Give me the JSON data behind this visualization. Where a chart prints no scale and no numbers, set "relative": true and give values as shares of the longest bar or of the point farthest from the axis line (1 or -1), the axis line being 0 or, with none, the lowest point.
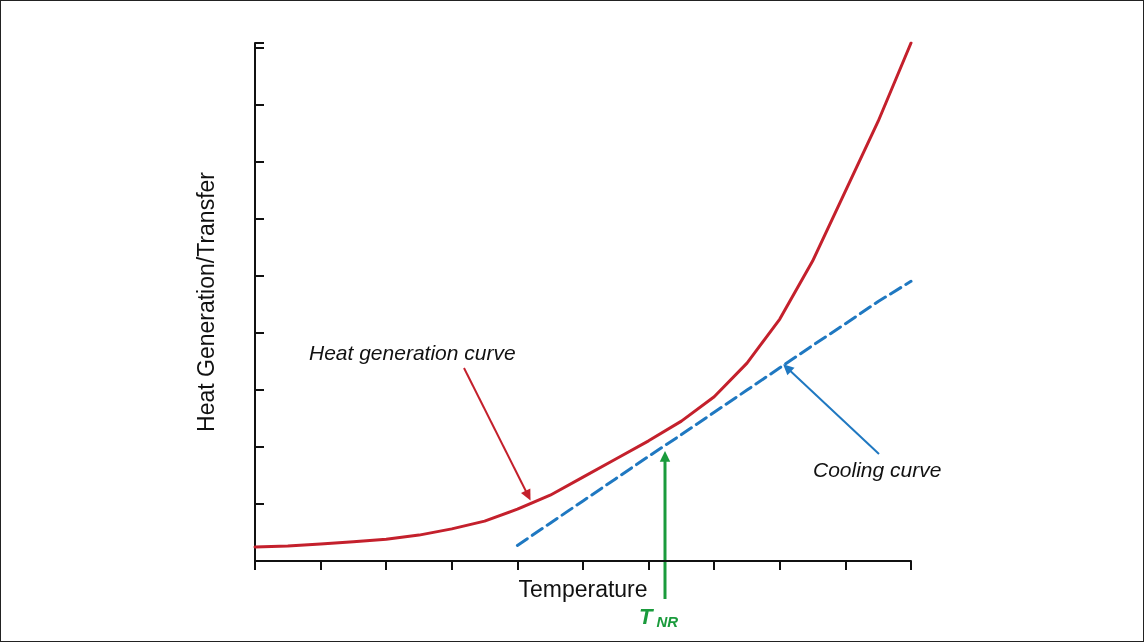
{
  "chart_data": {
    "type": "line",
    "relative": true,
    "xlabel": "Temperature",
    "ylabel": "Heat Generation/Transfer",
    "categories": [
      null,
      null,
      null,
      null,
      null,
      null,
      null,
      null,
      null,
      null,
      null,
      null,
      null,
      null,
      null,
      null,
      null,
      null,
      null,
      null,
      null
    ],
    "series": [
      {
        "color": "#c4202c",
        "line_style": "solid",
        "values": [
          0.027,
          0.029,
          0.033,
          0.037,
          0.042,
          0.05,
          0.062,
          0.077,
          0.1,
          0.127,
          0.162,
          0.197,
          0.232,
          0.27,
          0.317,
          0.382,
          0.467,
          0.579,
          0.714,
          0.849,
          1
        ]
      },
      {
        "color": "#1f78c1",
        "line_style": "dashed",
        "values": [
          null,
          null,
          null,
          null,
          null,
          null,
          null,
          null,
          0.03,
          0.073,
          0.116,
          0.159,
          0.202,
          0.244,
          0.287,
          0.33,
          0.373,
          0.416,
          0.458,
          0.501,
          0.54
        ]
      }
    ],
    "annotations": [
      "Heat generation curve",
      "Cooling curve",
      "T$_{NR}$"
    ],
    "marker": "none",
    "grid": false
  }
}
